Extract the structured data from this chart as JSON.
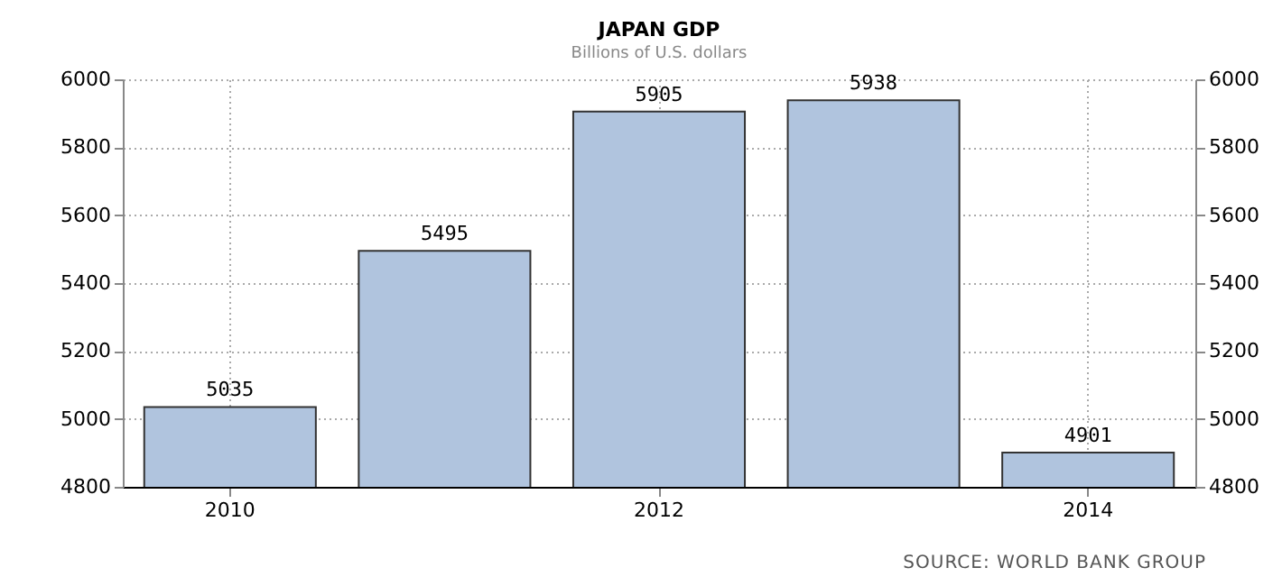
{
  "chart_data": {
    "type": "bar",
    "title": "JAPAN GDP",
    "subtitle": "Billions of U.S. dollars",
    "categories": [
      "2010",
      null,
      "2012",
      null,
      "2014"
    ],
    "values": [
      5035,
      5495,
      5905,
      5938,
      4901
    ],
    "color": "#b0c4de",
    "data_labels": true,
    "ylim": [
      4800,
      6000
    ],
    "yticks": [
      4800,
      5000,
      5200,
      5400,
      5600,
      5800,
      6000
    ],
    "y2lim": [
      4800,
      6000
    ],
    "y2ticks": [
      4800,
      5000,
      5200,
      5400,
      5600,
      5800,
      6000
    ],
    "grid": true,
    "annotations": [
      "SOURCE: WORLD BANK GROUP"
    ]
  }
}
